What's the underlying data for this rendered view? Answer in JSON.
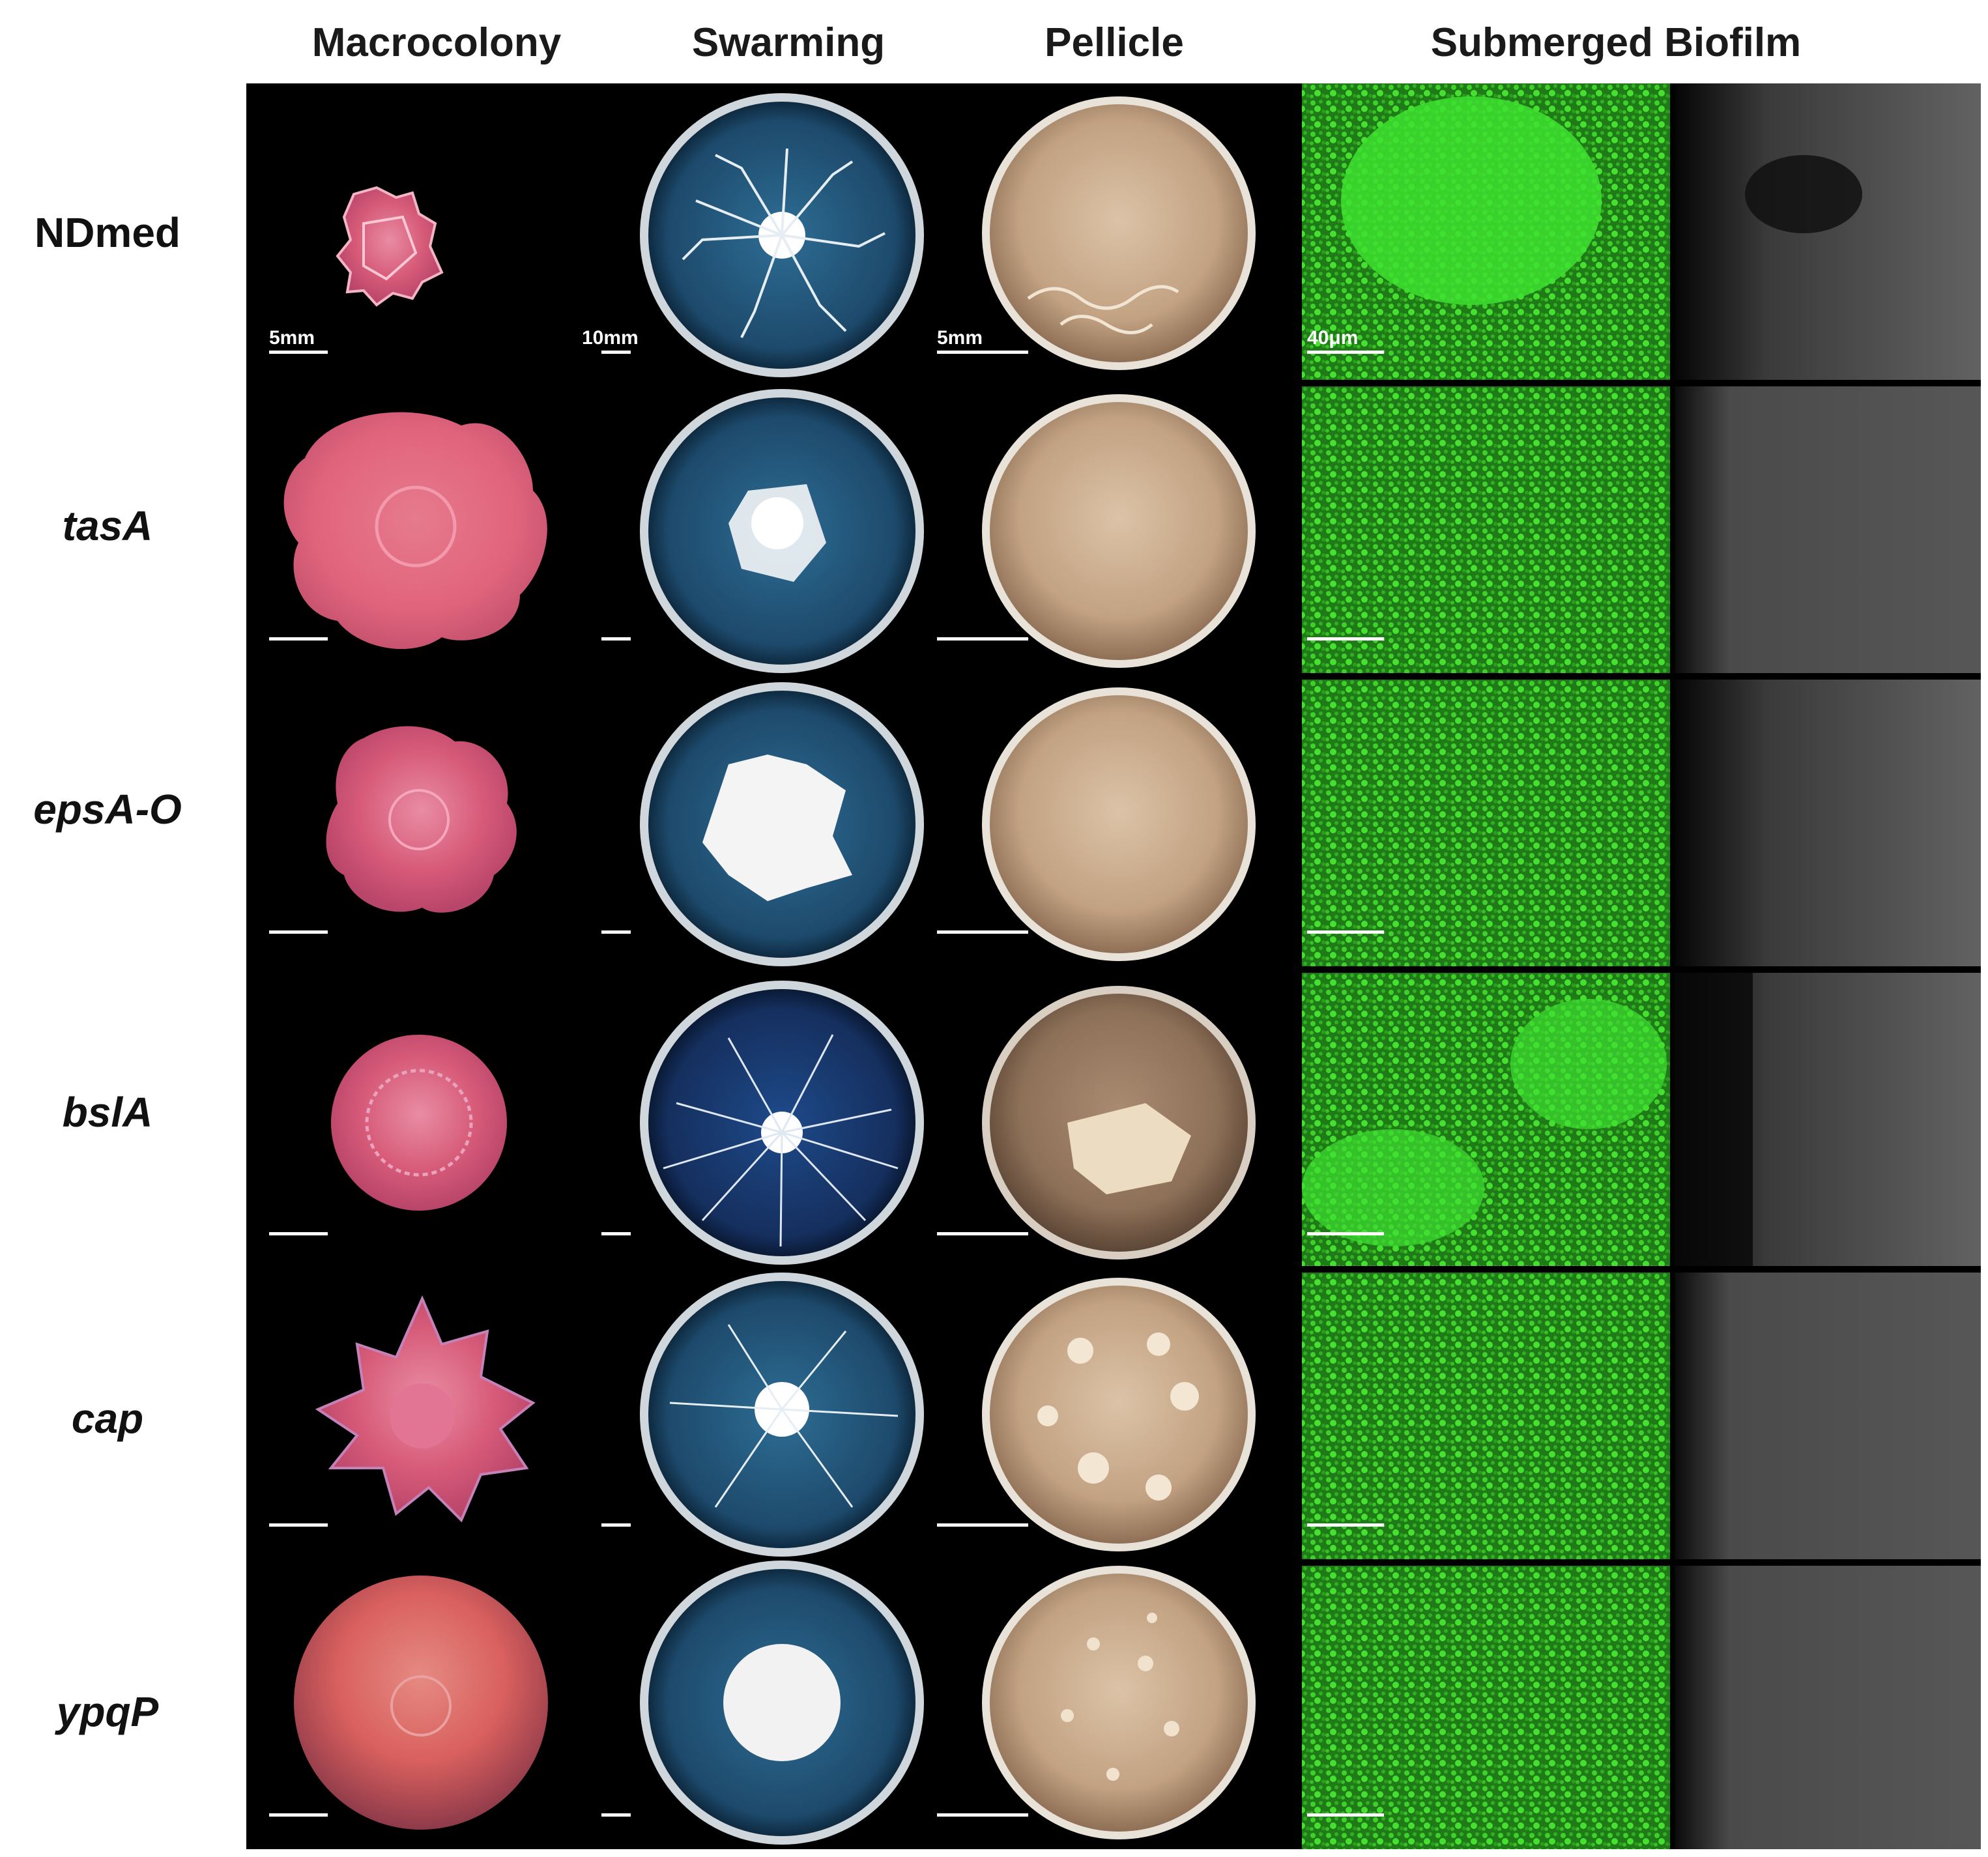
{
  "columns": {
    "macrocolony": "Macrocolony",
    "swarming": "Swarming",
    "pellicle": "Pellicle",
    "submerged": "Submerged Biofilm"
  },
  "rows": [
    "NDmed",
    "tasA",
    "epsA-O",
    "bslA",
    "cap",
    "ypqP"
  ],
  "scale_bars": {
    "macrocolony": "5mm",
    "swarming": "10mm",
    "pellicle": "5mm",
    "submerged": "40μm"
  },
  "colors": {
    "background": "#000000",
    "macrocolony": "#d65a78",
    "swarming_plate": "#1f4e70",
    "pellicle": "#c9ab8a",
    "biofilm_green": "#33cc22",
    "side_view": "#5a5a5a"
  }
}
